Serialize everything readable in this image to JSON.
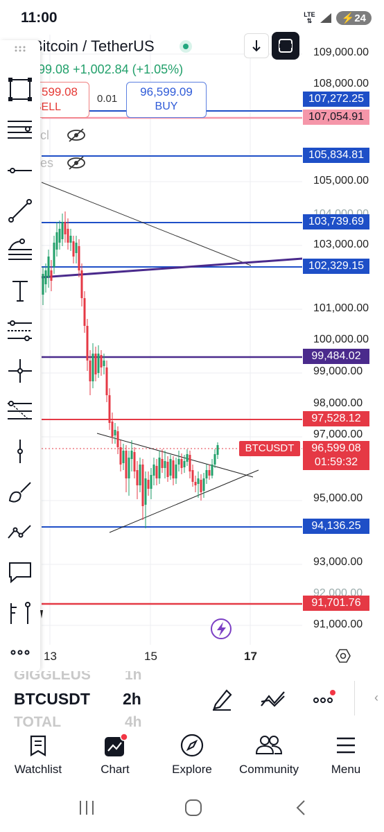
{
  "status": {
    "time": "11:00",
    "network": "LTE",
    "battery": "24"
  },
  "header": {
    "symbol_title": "Bitcoin / TetherUS",
    "price_partial": "99.08",
    "change": "+1,002.84 (+1.05%)",
    "sell_price": "599.08",
    "sell_label": "SELL",
    "spread": "0.01",
    "buy_price": "96,599.09",
    "buy_label": "BUY",
    "hidden_row1": "cl",
    "hidden_row2": "es"
  },
  "price_axis": {
    "ticks": [
      "109,000.00",
      "108,000.00",
      "105,000.00",
      "104,000.00",
      "103,000.00",
      "101,000.00",
      "100,000.00",
      "99,000.00",
      "98,000.00",
      "97,000.00",
      "95,000.00",
      "93,000.00",
      "92,000.00",
      "91,000.00"
    ],
    "labels": [
      {
        "value": "107,272.25",
        "color": "#1e4fc7"
      },
      {
        "value": "107,054.91",
        "color": "#f596a9"
      },
      {
        "value": "105,834.81",
        "color": "#1e4fc7"
      },
      {
        "value": "103,739.69",
        "color": "#1e4fc7"
      },
      {
        "value": "102,329.15",
        "color": "#1e4fc7"
      },
      {
        "value": "99,484.02",
        "color": "#4a2a8c"
      },
      {
        "value": "97,528.12",
        "color": "#e53945"
      },
      {
        "value": "96,599.08",
        "color": "#e53945"
      },
      {
        "value": "01:59:32",
        "color": "#e53945"
      },
      {
        "value": "94,136.25",
        "color": "#1e4fc7"
      },
      {
        "value": "91,701.76",
        "color": "#e53945"
      }
    ],
    "symbol_tag": "BTCUSDT"
  },
  "date_axis": {
    "ticks": [
      "13",
      "15",
      "17"
    ]
  },
  "symbol_panel": {
    "ghost_above_symbol": "GIGGLEUS",
    "ghost_above_interval": "1h",
    "symbol": "BTCUSDT",
    "interval": "2h",
    "ghost_below_symbol": "TOTAL",
    "ghost_below_interval": "4h"
  },
  "bottom_nav": {
    "items": [
      {
        "label": "Watchlist",
        "icon": "watchlist-icon"
      },
      {
        "label": "Chart",
        "icon": "chart-icon"
      },
      {
        "label": "Explore",
        "icon": "compass-icon"
      },
      {
        "label": "Community",
        "icon": "community-icon"
      },
      {
        "label": "Menu",
        "icon": "menu-icon"
      }
    ]
  },
  "colors": {
    "up": "#22a06b",
    "down": "#e53945",
    "blue_line": "#1e4fc7",
    "purple_line": "#4a2a8c",
    "pink_line": "#f596a9",
    "accent": "#7b3fc4"
  }
}
